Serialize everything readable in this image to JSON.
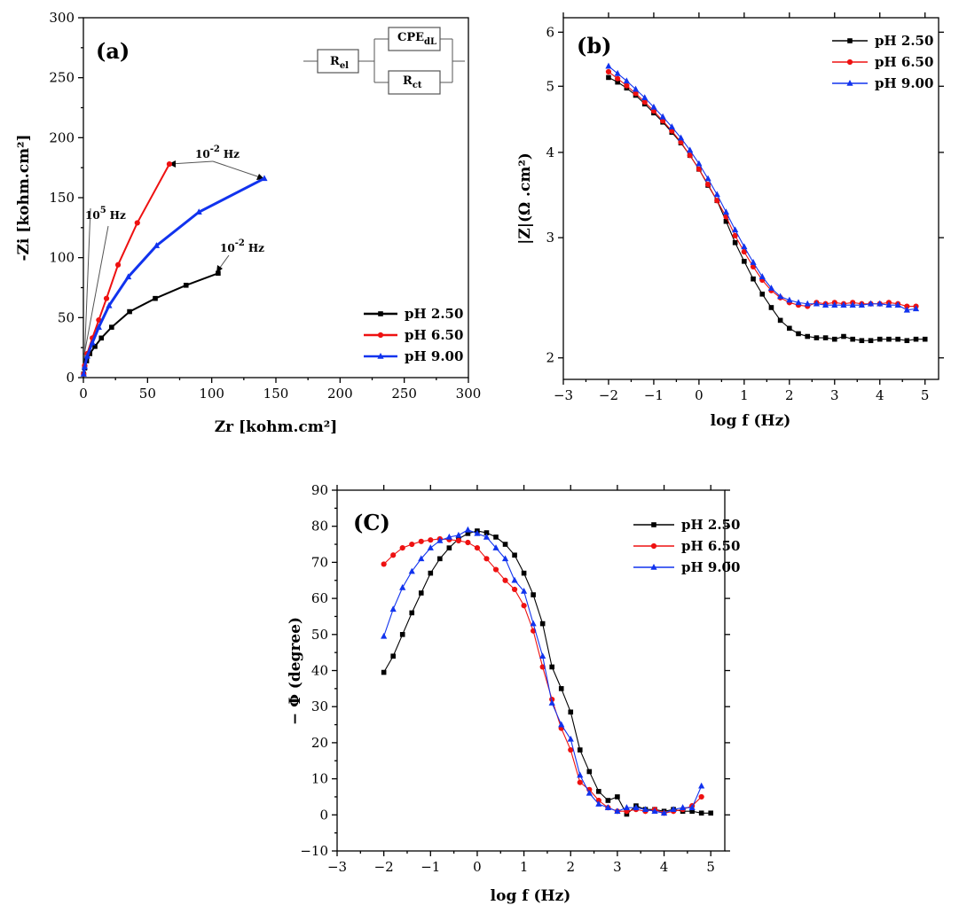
{
  "chart_data": [
    {
      "id": "a",
      "type": "line",
      "panel_label": "(a)",
      "xlabel": "Zr [kohm.cm²]",
      "ylabel": "-Zi [kohm.cm²]",
      "xlim": [
        0,
        300
      ],
      "ylim": [
        0,
        300
      ],
      "xticks": [
        0,
        50,
        100,
        150,
        200,
        250,
        300
      ],
      "yticks": [
        0,
        50,
        100,
        150,
        200,
        250,
        300
      ],
      "legend": "bottom-right",
      "series": [
        {
          "name": "pH 2.50",
          "color": "#000000",
          "marker": "square",
          "x": [
            0.2,
            1,
            2.5,
            5,
            9,
            14,
            22,
            36,
            56,
            80,
            105
          ],
          "y": [
            3,
            8,
            14,
            20,
            26,
            33,
            42,
            55,
            66,
            77,
            87
          ]
        },
        {
          "name": "pH 6.50",
          "color": "#ee1111",
          "marker": "circle",
          "x": [
            0.2,
            1,
            3,
            7,
            12,
            18,
            27,
            42,
            67
          ],
          "y": [
            3,
            10,
            20,
            33,
            48,
            66,
            94,
            129,
            178
          ]
        },
        {
          "name": "pH 9.00",
          "color": "#1133ee",
          "marker": "triangle",
          "x": [
            0.2,
            1,
            3,
            7,
            12,
            20,
            35,
            57,
            90,
            141
          ],
          "y": [
            3,
            9,
            18,
            29,
            42,
            60,
            84,
            110,
            138,
            166
          ]
        }
      ],
      "annotations": {
        "low_freq": "10",
        "low_freq_exp": "-2",
        "low_freq_unit": "Hz",
        "high_freq": "10",
        "high_freq_exp": "5",
        "high_freq_unit": "Hz"
      },
      "circuit": {
        "r1": "R",
        "r1_sub": "el",
        "cpe": "CPE",
        "cpe_sub": "dL",
        "r2": "R",
        "r2_sub": "ct"
      }
    },
    {
      "id": "b",
      "type": "line",
      "panel_label": "(b)",
      "xlabel": "log f (Hz)",
      "ylabel": "|Z|(Ω .cm²)",
      "xlim": [
        -3,
        5.3
      ],
      "ylim": [
        1.86,
        6.3
      ],
      "y_scale": "log",
      "xticks": [
        -3,
        -2,
        -1,
        0,
        1,
        2,
        3,
        4,
        5
      ],
      "yticks": [
        2,
        3,
        4,
        5,
        6
      ],
      "legend": "top-right",
      "series": [
        {
          "name": "pH 2.50",
          "color": "#000000",
          "marker": "square",
          "x": [
            -2,
            -1.8,
            -1.6,
            -1.4,
            -1.2,
            -1,
            -0.8,
            -0.6,
            -0.4,
            -0.2,
            0,
            0.2,
            0.4,
            0.6,
            0.8,
            1,
            1.2,
            1.4,
            1.6,
            1.8,
            2,
            2.2,
            2.4,
            2.6,
            2.8,
            3,
            3.2,
            3.4,
            3.6,
            3.8,
            4,
            4.2,
            4.4,
            4.6,
            4.8,
            5
          ],
          "y": [
            5.15,
            5.07,
            4.97,
            4.85,
            4.71,
            4.57,
            4.43,
            4.28,
            4.13,
            3.96,
            3.78,
            3.58,
            3.4,
            3.17,
            2.95,
            2.77,
            2.61,
            2.48,
            2.37,
            2.27,
            2.21,
            2.17,
            2.15,
            2.14,
            2.14,
            2.13,
            2.15,
            2.13,
            2.12,
            2.12,
            2.13,
            2.13,
            2.13,
            2.12,
            2.13,
            2.13
          ]
        },
        {
          "name": "pH 6.50",
          "color": "#ee1111",
          "marker": "circle",
          "x": [
            -2,
            -1.8,
            -1.6,
            -1.4,
            -1.2,
            -1,
            -0.8,
            -0.6,
            -0.4,
            -0.2,
            0,
            0.2,
            0.4,
            0.6,
            0.8,
            1,
            1.2,
            1.4,
            1.6,
            1.8,
            2,
            2.2,
            2.4,
            2.6,
            2.8,
            3,
            3.2,
            3.4,
            3.6,
            3.8,
            4,
            4.2,
            4.4,
            4.6,
            4.8
          ],
          "y": [
            5.25,
            5.13,
            5.01,
            4.88,
            4.74,
            4.6,
            4.45,
            4.3,
            4.14,
            3.96,
            3.78,
            3.59,
            3.4,
            3.22,
            3.02,
            2.86,
            2.72,
            2.6,
            2.51,
            2.45,
            2.41,
            2.39,
            2.38,
            2.41,
            2.4,
            2.41,
            2.4,
            2.41,
            2.4,
            2.4,
            2.4,
            2.41,
            2.4,
            2.38,
            2.38
          ]
        },
        {
          "name": "pH 9.00",
          "color": "#1133ee",
          "marker": "triangle",
          "x": [
            -2,
            -1.8,
            -1.6,
            -1.4,
            -1.2,
            -1,
            -0.8,
            -0.6,
            -0.4,
            -0.2,
            0,
            0.2,
            0.4,
            0.6,
            0.8,
            1,
            1.2,
            1.4,
            1.6,
            1.8,
            2,
            2.2,
            2.4,
            2.6,
            2.8,
            3,
            3.2,
            3.4,
            3.6,
            3.8,
            4,
            4.2,
            4.4,
            4.6,
            4.8
          ],
          "y": [
            5.35,
            5.22,
            5.09,
            4.95,
            4.81,
            4.66,
            4.51,
            4.36,
            4.2,
            4.03,
            3.85,
            3.66,
            3.47,
            3.27,
            3.08,
            2.91,
            2.76,
            2.63,
            2.53,
            2.46,
            2.43,
            2.41,
            2.4,
            2.4,
            2.39,
            2.39,
            2.39,
            2.39,
            2.39,
            2.4,
            2.4,
            2.39,
            2.39,
            2.35,
            2.36
          ]
        }
      ]
    },
    {
      "id": "c",
      "type": "line",
      "panel_label": "(C)",
      "xlabel": "log f (Hz)",
      "ylabel": "− Φ (degree)",
      "xlim": [
        -3,
        5.3
      ],
      "ylim": [
        -10,
        90
      ],
      "xticks": [
        -3,
        -2,
        -1,
        0,
        1,
        2,
        3,
        4,
        5
      ],
      "yticks": [
        -10,
        0,
        10,
        20,
        30,
        40,
        50,
        60,
        70,
        80,
        90
      ],
      "legend": "top-right",
      "series": [
        {
          "name": "pH 2.50",
          "color": "#000000",
          "marker": "square",
          "x": [
            -2,
            -1.8,
            -1.6,
            -1.4,
            -1.2,
            -1,
            -0.8,
            -0.6,
            -0.4,
            -0.2,
            0,
            0.2,
            0.4,
            0.6,
            0.8,
            1,
            1.2,
            1.4,
            1.6,
            1.8,
            2,
            2.2,
            2.4,
            2.6,
            2.8,
            3,
            3.2,
            3.4,
            3.6,
            3.8,
            4,
            4.2,
            4.4,
            4.6,
            4.8,
            5
          ],
          "y": [
            39.5,
            44,
            50,
            56,
            61.5,
            67,
            71,
            74,
            76.5,
            78,
            78.7,
            78.2,
            77,
            75,
            72,
            67,
            61,
            53,
            41,
            35,
            28.5,
            18,
            12,
            6.5,
            4,
            5,
            0.2,
            2.5,
            1.5,
            1.5,
            1,
            1.5,
            1,
            1,
            0.5,
            0.5
          ]
        },
        {
          "name": "pH 6.50",
          "color": "#ee1111",
          "marker": "circle",
          "x": [
            -2,
            -1.8,
            -1.6,
            -1.4,
            -1.2,
            -1,
            -0.8,
            -0.6,
            -0.4,
            -0.2,
            0,
            0.2,
            0.4,
            0.6,
            0.8,
            1,
            1.2,
            1.4,
            1.6,
            1.8,
            2,
            2.2,
            2.4,
            2.6,
            2.8,
            3,
            3.2,
            3.4,
            3.6,
            3.8,
            4,
            4.2,
            4.4,
            4.6,
            4.8
          ],
          "y": [
            69.5,
            72,
            74,
            75,
            75.8,
            76.2,
            76.5,
            76.3,
            76,
            75.5,
            74,
            71,
            68,
            65,
            62.5,
            58,
            51,
            41,
            32,
            24,
            18,
            9,
            7,
            4,
            2,
            1,
            1,
            1.5,
            1,
            1.5,
            0.5,
            1,
            1.5,
            2.5,
            5
          ]
        },
        {
          "name": "pH 9.00",
          "color": "#1133ee",
          "marker": "triangle",
          "x": [
            -2,
            -1.8,
            -1.6,
            -1.4,
            -1.2,
            -1,
            -0.8,
            -0.6,
            -0.4,
            -0.2,
            0,
            0.2,
            0.4,
            0.6,
            0.8,
            1,
            1.2,
            1.4,
            1.6,
            1.8,
            2,
            2.2,
            2.4,
            2.6,
            2.8,
            3,
            3.2,
            3.4,
            3.6,
            3.8,
            4,
            4.2,
            4.4,
            4.6,
            4.8
          ],
          "y": [
            49.5,
            57,
            63,
            67.5,
            71,
            74,
            76,
            77,
            77.5,
            79,
            78,
            77,
            74,
            71,
            65,
            62,
            53,
            44,
            31,
            25,
            21,
            11,
            6,
            3,
            2,
            1,
            2,
            2,
            1.5,
            1,
            0.5,
            1.5,
            2,
            2,
            8
          ]
        }
      ]
    }
  ]
}
